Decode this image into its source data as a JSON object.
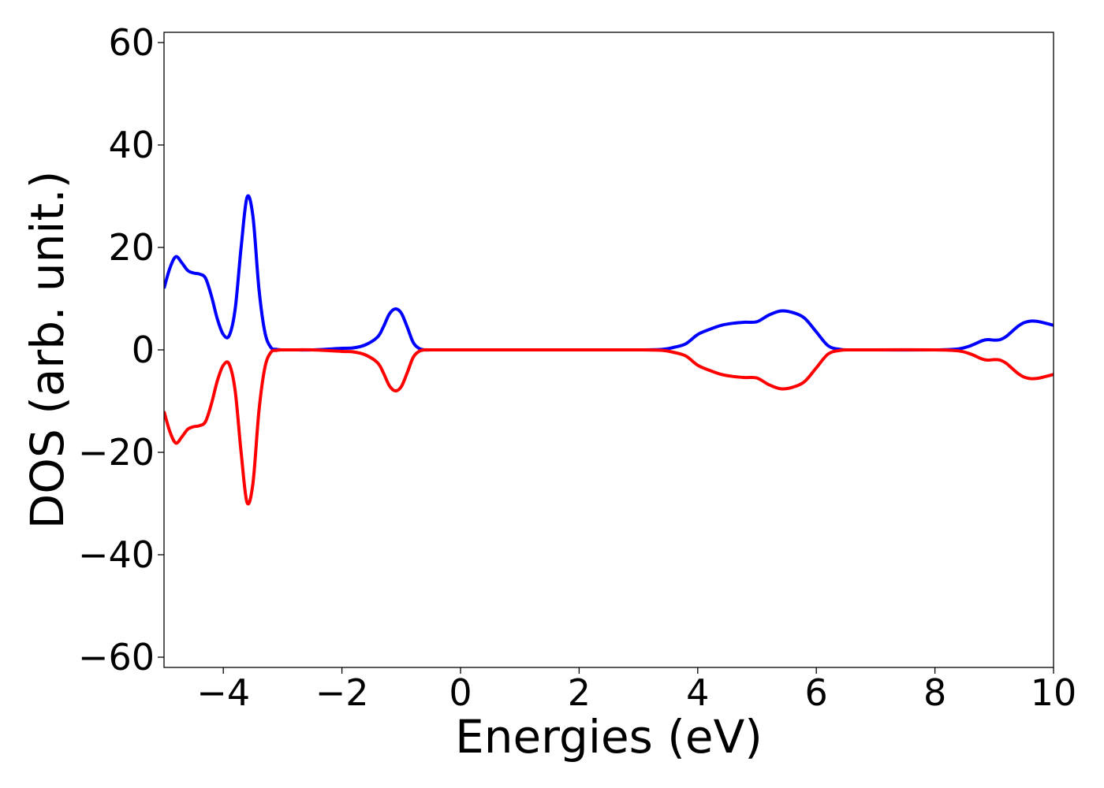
{
  "chart_data": {
    "type": "line",
    "title": "",
    "xlabel": "Energies (eV)",
    "ylabel": "DOS (arb. unit.)",
    "xlim": [
      -5,
      10
    ],
    "ylim": [
      -62,
      62
    ],
    "grid": false,
    "legend": "none",
    "xticks": [
      -4,
      -2,
      0,
      2,
      4,
      6,
      8,
      10
    ],
    "xtick_labels": [
      "−4",
      "−2",
      "0",
      "2",
      "4",
      "6",
      "8",
      "10"
    ],
    "yticks": [
      -60,
      -40,
      -20,
      0,
      20,
      40,
      60
    ],
    "ytick_labels": [
      "−60",
      "−40",
      "−20",
      "0",
      "20",
      "40",
      "60"
    ],
    "series": [
      {
        "color": "#0000ff",
        "x": [
          -5.0,
          -4.9,
          -4.8,
          -4.7,
          -4.6,
          -4.5,
          -4.4,
          -4.3,
          -4.2,
          -4.1,
          -4.0,
          -3.9,
          -3.8,
          -3.7,
          -3.6,
          -3.5,
          -3.4,
          -3.3,
          -3.2,
          -3.1,
          -3.0,
          -2.9,
          -2.8,
          -2.5,
          -2.0,
          -1.8,
          -1.6,
          -1.4,
          -1.3,
          -1.2,
          -1.1,
          -1.0,
          -0.9,
          -0.8,
          -0.7,
          -0.6,
          -0.5,
          0.0,
          1.0,
          2.0,
          3.0,
          3.4,
          3.6,
          3.8,
          4.0,
          4.2,
          4.4,
          4.6,
          4.8,
          5.0,
          5.2,
          5.4,
          5.6,
          5.8,
          6.0,
          6.2,
          6.4,
          6.6,
          7.0,
          8.0,
          8.4,
          8.6,
          8.8,
          8.9,
          9.0,
          9.1,
          9.2,
          9.3,
          9.4,
          9.5,
          9.6,
          9.7,
          9.8,
          9.9,
          10.0
        ],
        "y": [
          12,
          16,
          18.2,
          17,
          15.5,
          15,
          14.8,
          14,
          10.5,
          6,
          3,
          2.8,
          8,
          20,
          29.8,
          26,
          12,
          3.5,
          0.5,
          0.1,
          0,
          0,
          0,
          0,
          0.3,
          0.4,
          1,
          2.5,
          4.5,
          7,
          8,
          7.2,
          4.5,
          1.5,
          0.3,
          0,
          0,
          0,
          0,
          0,
          0,
          0.1,
          0.5,
          1.2,
          3,
          4,
          4.8,
          5.2,
          5.4,
          5.5,
          6.8,
          7.6,
          7.3,
          6.2,
          3.5,
          0.8,
          0.1,
          0,
          0,
          0,
          0.2,
          0.8,
          1.8,
          2,
          1.9,
          2,
          2.6,
          3.6,
          4.6,
          5.3,
          5.6,
          5.6,
          5.4,
          5.1,
          4.8
        ]
      },
      {
        "color": "#ff0000",
        "x": [
          -5.0,
          -4.9,
          -4.8,
          -4.7,
          -4.6,
          -4.5,
          -4.4,
          -4.3,
          -4.2,
          -4.1,
          -4.0,
          -3.9,
          -3.8,
          -3.7,
          -3.6,
          -3.5,
          -3.4,
          -3.3,
          -3.2,
          -3.1,
          -3.0,
          -2.9,
          -2.8,
          -2.5,
          -2.0,
          -1.8,
          -1.6,
          -1.4,
          -1.3,
          -1.2,
          -1.1,
          -1.0,
          -0.9,
          -0.8,
          -0.7,
          -0.6,
          -0.5,
          0.0,
          1.0,
          2.0,
          3.0,
          3.4,
          3.6,
          3.8,
          4.0,
          4.2,
          4.4,
          4.6,
          4.8,
          5.0,
          5.2,
          5.4,
          5.6,
          5.8,
          6.0,
          6.2,
          6.4,
          6.6,
          7.0,
          8.0,
          8.4,
          8.6,
          8.8,
          8.9,
          9.0,
          9.1,
          9.2,
          9.3,
          9.4,
          9.5,
          9.6,
          9.7,
          9.8,
          9.9,
          10.0
        ],
        "y": [
          -12,
          -16,
          -18.2,
          -17,
          -15.5,
          -15,
          -14.8,
          -14,
          -10.5,
          -6,
          -3,
          -2.8,
          -8,
          -20,
          -29.8,
          -26,
          -12,
          -3.5,
          -0.5,
          -0.1,
          0,
          0,
          0,
          0,
          -0.3,
          -0.4,
          -1,
          -2.5,
          -4.5,
          -7,
          -8,
          -7.2,
          -4.5,
          -1.5,
          -0.3,
          0,
          0,
          0,
          0,
          0,
          0,
          -0.1,
          -0.5,
          -1.2,
          -3,
          -4,
          -4.8,
          -5.2,
          -5.4,
          -5.5,
          -6.8,
          -7.6,
          -7.3,
          -6.2,
          -3.5,
          -0.8,
          -0.1,
          0,
          0,
          0,
          -0.2,
          -0.8,
          -1.8,
          -2,
          -1.9,
          -2,
          -2.6,
          -3.6,
          -4.6,
          -5.3,
          -5.6,
          -5.6,
          -5.4,
          -5.1,
          -4.8
        ]
      }
    ]
  }
}
